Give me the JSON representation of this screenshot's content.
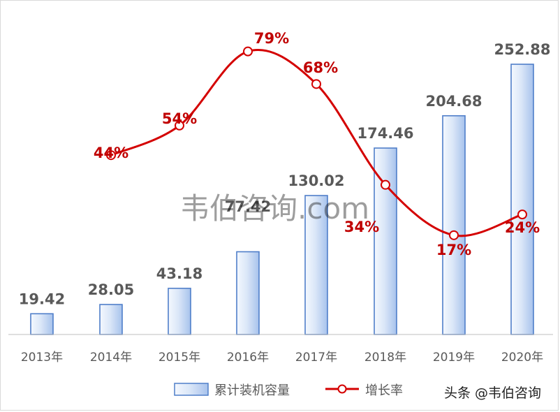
{
  "chart_data": {
    "type": "bar",
    "categories": [
      "2013年",
      "2014年",
      "2015年",
      "2016年",
      "2017年",
      "2018年",
      "2019年",
      "2020年"
    ],
    "series": [
      {
        "name": "累计装机容量",
        "type": "bar",
        "values": [
          19.42,
          28.05,
          43.18,
          77.42,
          130.02,
          174.46,
          204.68,
          252.88
        ],
        "labels": [
          "19.42",
          "28.05",
          "43.18",
          "77.42",
          "130.02",
          "174.46",
          "204.68",
          "252.88"
        ],
        "color": "#4f7ec9"
      },
      {
        "name": "增长率",
        "type": "line",
        "values": [
          null,
          44,
          54,
          79,
          68,
          34,
          17,
          24
        ],
        "labels": [
          "",
          "44%",
          "54%",
          "79%",
          "68%",
          "34%",
          "17%",
          "24%"
        ],
        "color": "#d40000"
      }
    ],
    "legend_position": "bottom",
    "grid": false
  },
  "watermark": "韦伯咨询.com",
  "credit": "头条 @韦伯咨询"
}
